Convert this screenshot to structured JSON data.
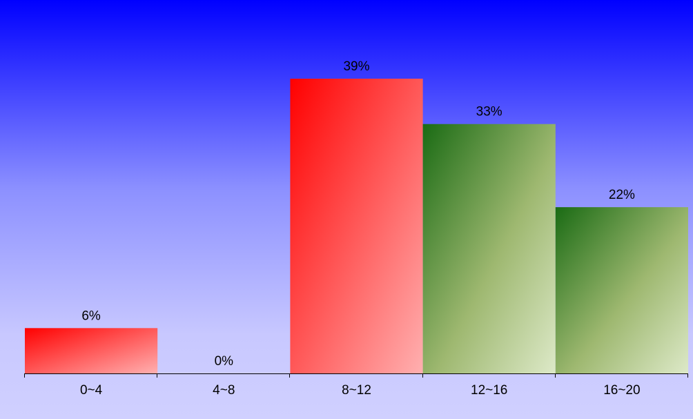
{
  "chart_data": {
    "type": "bar",
    "categories": [
      "0~4",
      "4~8",
      "8~12",
      "12~16",
      "16~20"
    ],
    "values": [
      6,
      0,
      39,
      33,
      22
    ],
    "value_labels": [
      "6%",
      "0%",
      "39%",
      "33%",
      "22%"
    ],
    "title": "",
    "xlabel": "",
    "ylabel": "",
    "ylim": [
      0,
      39
    ],
    "grid": false,
    "bar_colors": [
      "red",
      "red",
      "red",
      "green",
      "green"
    ]
  },
  "colors": {
    "red_start": "#ff0000",
    "red_end": "#ffb0b0",
    "green_start": "#1a6b14",
    "green_mid": "#9eb870",
    "green_end": "#dde9c8",
    "background_top": "#0000ff",
    "background_bottom": "#d0d0ff",
    "axis": "#000000"
  }
}
